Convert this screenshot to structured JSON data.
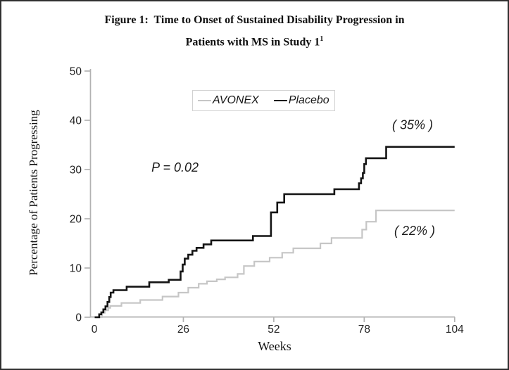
{
  "figure": {
    "title_line1": "Figure 1:  Time to Onset of Sustained Disability Progression in",
    "title_line2": "Patients with MS in Study 1",
    "title_superscript": "1"
  },
  "chart_data": {
    "type": "line",
    "variant": "kaplan-meier-step",
    "title": "Figure 1: Time to Onset of Sustained Disability Progression in Patients with MS in Study 1",
    "xlabel": "Weeks",
    "ylabel": "Percentage of Patients Progressing",
    "xlim": [
      0,
      104
    ],
    "ylim": [
      0,
      50
    ],
    "x_ticks": [
      0,
      26,
      52,
      78,
      104
    ],
    "y_ticks": [
      0,
      10,
      20,
      30,
      40,
      50
    ],
    "grid": false,
    "legend_position": "top-center-inside",
    "axis_color": "#b2b2b2",
    "annotations": [
      {
        "id": "p-value",
        "text": "P = 0.02",
        "week": 23.6,
        "pct": 30.4
      },
      {
        "id": "placebo-final",
        "text": "( 35% )",
        "week": 91.9,
        "pct": 39.1
      },
      {
        "id": "avonex-final",
        "text": "( 22% )",
        "week": 92.5,
        "pct": 17.6
      }
    ],
    "series": [
      {
        "name": "AVONEX",
        "color": "#c6c6c6",
        "line_width": 2.2,
        "final_value_label": "( 22% )",
        "steps": [
          [
            0.8,
            0
          ],
          [
            2.6,
            0.9
          ],
          [
            3.4,
            1.4
          ],
          [
            4.4,
            1.9
          ],
          [
            5.0,
            2.3
          ],
          [
            8.2,
            2.9
          ],
          [
            13.6,
            3.5
          ],
          [
            20.0,
            4.2
          ],
          [
            24.6,
            5.0
          ],
          [
            27.4,
            6.0
          ],
          [
            30.4,
            6.8
          ],
          [
            32.8,
            7.3
          ],
          [
            35.6,
            7.7
          ],
          [
            38.0,
            8.1
          ],
          [
            41.6,
            8.8
          ],
          [
            43.4,
            10.4
          ],
          [
            46.4,
            11.3
          ],
          [
            50.8,
            12.1
          ],
          [
            54.4,
            13.1
          ],
          [
            57.6,
            14.0
          ],
          [
            65.4,
            15.0
          ],
          [
            68.6,
            16.1
          ],
          [
            77.4,
            17.8
          ],
          [
            78.6,
            19.4
          ],
          [
            81.4,
            21.7
          ]
        ]
      },
      {
        "name": "Placebo",
        "color": "#141414",
        "line_width": 2.6,
        "final_value_label": "( 35% )",
        "steps": [
          [
            0.5,
            0
          ],
          [
            1.8,
            0.6
          ],
          [
            2.4,
            1.0
          ],
          [
            3.0,
            1.6
          ],
          [
            3.6,
            2.2
          ],
          [
            4.2,
            3.1
          ],
          [
            4.7,
            4.1
          ],
          [
            5.1,
            5.0
          ],
          [
            5.9,
            5.5
          ],
          [
            9.7,
            6.2
          ],
          [
            16.2,
            7.1
          ],
          [
            21.8,
            7.6
          ],
          [
            25.2,
            9.3
          ],
          [
            25.8,
            10.7
          ],
          [
            26.4,
            11.9
          ],
          [
            27.4,
            12.7
          ],
          [
            28.6,
            13.5
          ],
          [
            29.8,
            14.1
          ],
          [
            31.8,
            14.8
          ],
          [
            34.0,
            15.6
          ],
          [
            46.0,
            16.5
          ],
          [
            51.2,
            21.3
          ],
          [
            53.0,
            23.3
          ],
          [
            55.0,
            25.0
          ],
          [
            69.4,
            26.0
          ],
          [
            76.5,
            27.2
          ],
          [
            77.1,
            28.2
          ],
          [
            77.6,
            29.3
          ],
          [
            78.0,
            31.1
          ],
          [
            78.5,
            32.3
          ],
          [
            84.3,
            34.6
          ]
        ]
      }
    ]
  }
}
